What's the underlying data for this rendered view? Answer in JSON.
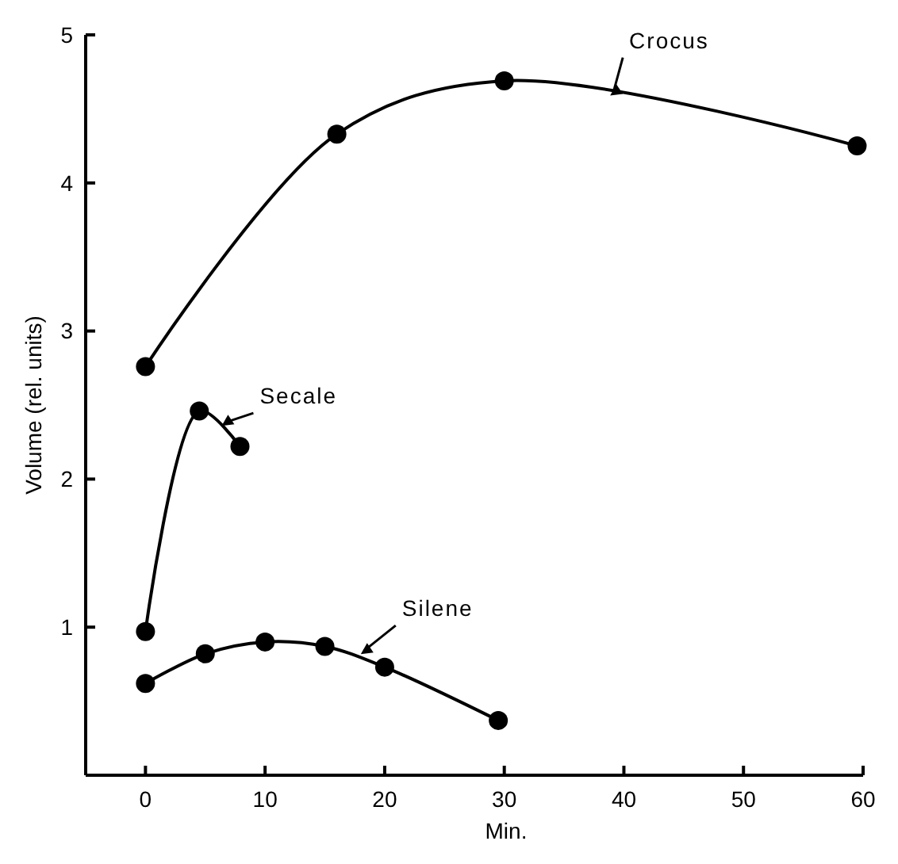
{
  "chart_data": {
    "type": "line",
    "xlabel": "Min.",
    "ylabel": "Volume (rel. units)",
    "xlim": [
      -5,
      60
    ],
    "ylim": [
      0,
      5
    ],
    "xticks": [
      0,
      10,
      20,
      30,
      40,
      50,
      60
    ],
    "yticks": [
      {
        "value": 1,
        "label": "1"
      },
      2,
      3,
      4,
      5
    ],
    "marker": "circle",
    "line_style": "solid",
    "grid": false,
    "series": [
      {
        "name": "Crocus",
        "color": "#000000",
        "x": [
          0,
          16,
          30,
          59.5
        ],
        "values": [
          2.76,
          4.33,
          4.69,
          4.25
        ]
      },
      {
        "name": "Secale",
        "color": "#000000",
        "x": [
          0,
          4.5,
          7.9
        ],
        "values": [
          0.97,
          2.46,
          2.22
        ]
      },
      {
        "name": "Silene",
        "color": "#000000",
        "x": [
          0,
          5,
          10,
          15,
          20,
          29.5
        ],
        "values": [
          0.62,
          0.82,
          0.9,
          0.87,
          0.73,
          0.37
        ]
      }
    ]
  }
}
